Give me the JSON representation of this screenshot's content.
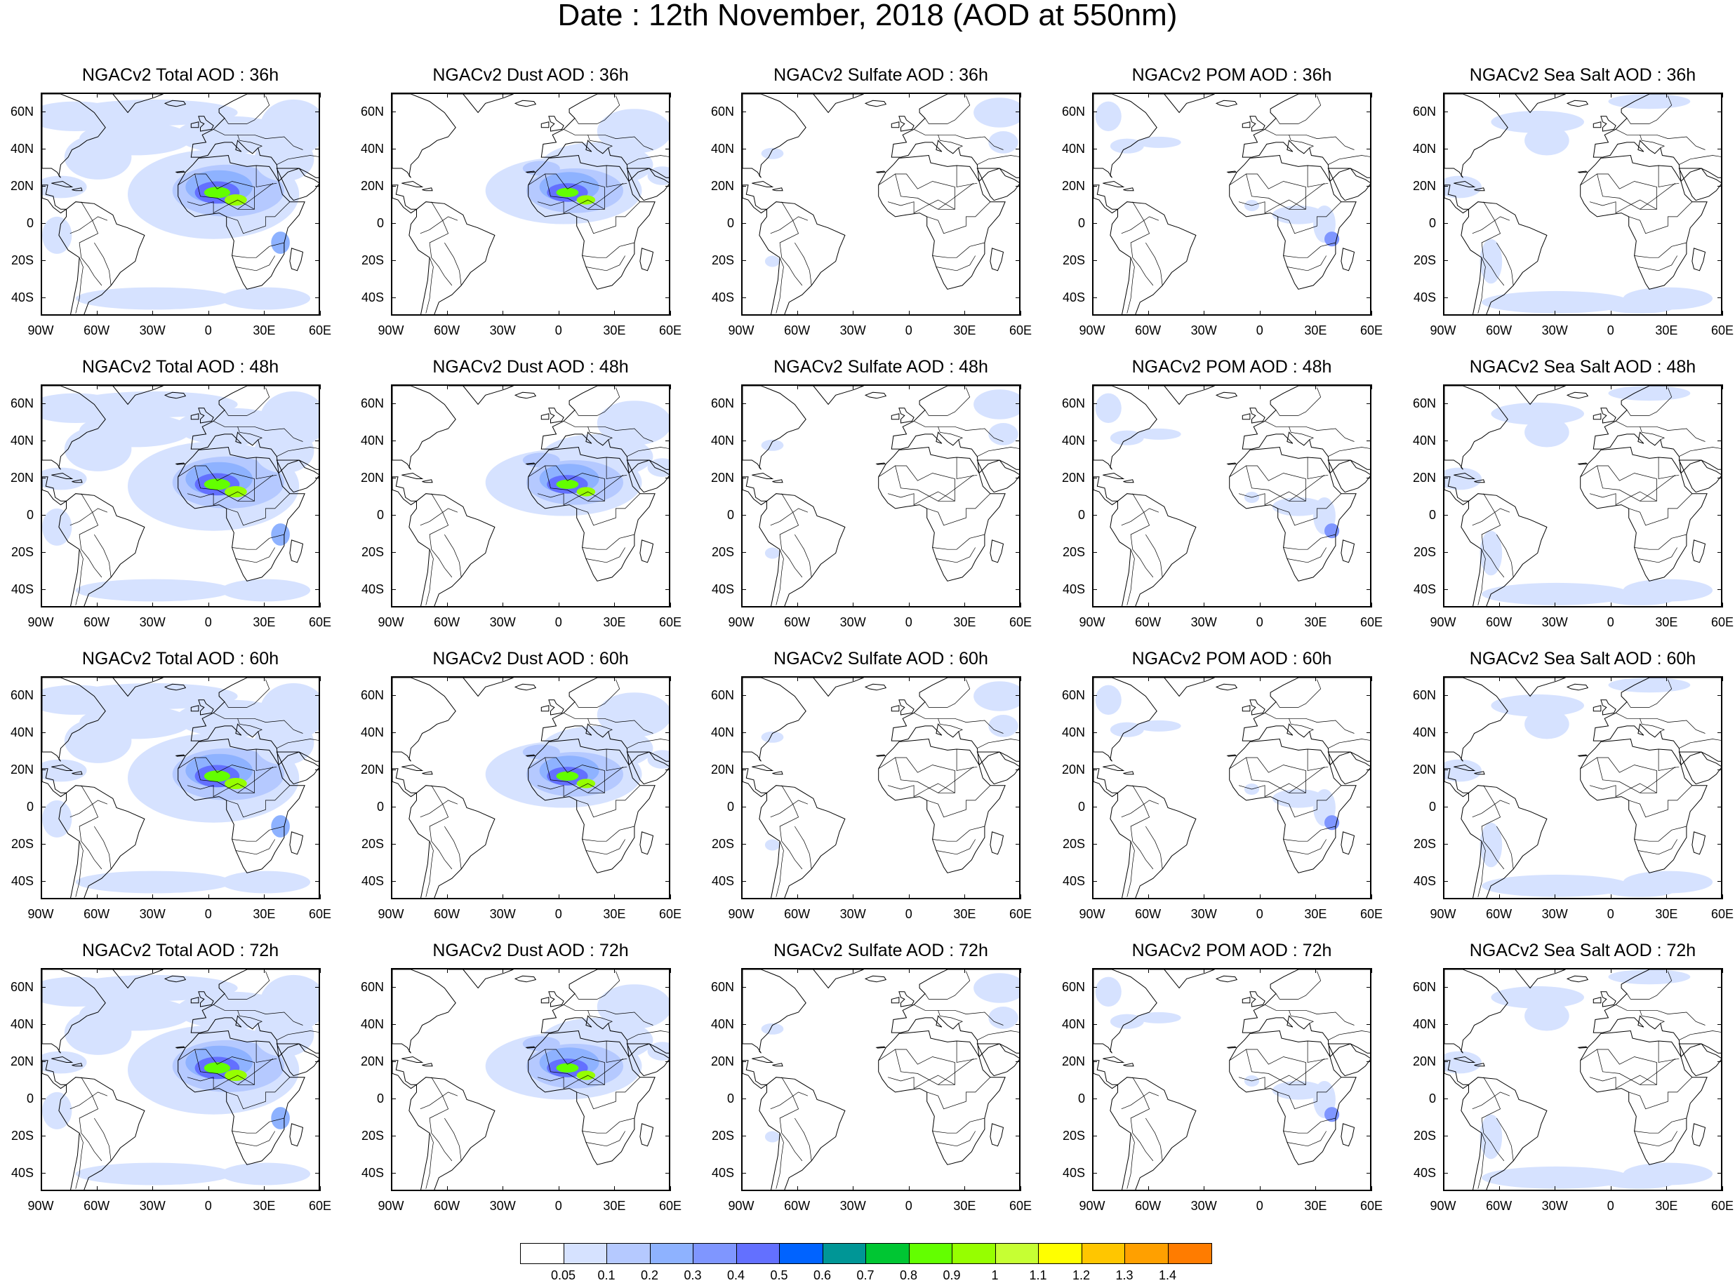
{
  "title": "Date : 12th November, 2018 (AOD at 550nm)",
  "rows": [
    {
      "hour": "36h",
      "panels": [
        {
          "title": "NGACv2 Total AOD : 36h",
          "species": "total"
        },
        {
          "title": "NGACv2 Dust AOD : 36h",
          "species": "dust"
        },
        {
          "title": "NGACv2 Sulfate AOD : 36h",
          "species": "sulfate"
        },
        {
          "title": "NGACv2 POM AOD : 36h",
          "species": "pom"
        },
        {
          "title": "NGACv2 Sea Salt AOD : 36h",
          "species": "seasalt"
        }
      ]
    },
    {
      "hour": "48h",
      "panels": [
        {
          "title": "NGACv2 Total AOD : 48h",
          "species": "total"
        },
        {
          "title": "NGACv2 Dust AOD : 48h",
          "species": "dust"
        },
        {
          "title": "NGACv2 Sulfate AOD : 48h",
          "species": "sulfate"
        },
        {
          "title": "NGACv2 POM AOD : 48h",
          "species": "pom"
        },
        {
          "title": "NGACv2 Sea Salt AOD : 48h",
          "species": "seasalt"
        }
      ]
    },
    {
      "hour": "60h",
      "panels": [
        {
          "title": "NGACv2 Total AOD : 60h",
          "species": "total"
        },
        {
          "title": "NGACv2 Dust AOD : 60h",
          "species": "dust"
        },
        {
          "title": "NGACv2 Sulfate AOD : 60h",
          "species": "sulfate"
        },
        {
          "title": "NGACv2 POM AOD : 60h",
          "species": "pom"
        },
        {
          "title": "NGACv2 Sea Salt AOD : 60h",
          "species": "seasalt"
        }
      ]
    },
    {
      "hour": "72h",
      "panels": [
        {
          "title": "NGACv2 Total AOD : 72h",
          "species": "total"
        },
        {
          "title": "NGACv2 Dust AOD : 72h",
          "species": "dust"
        },
        {
          "title": "NGACv2 Sulfate AOD : 72h",
          "species": "sulfate"
        },
        {
          "title": "NGACv2 POM AOD : 72h",
          "species": "pom"
        },
        {
          "title": "NGACv2 Sea Salt  AOD : 72h",
          "species": "seasalt"
        }
      ]
    }
  ],
  "lon_ticks": [
    "90W",
    "60W",
    "30W",
    "0",
    "30E",
    "60E"
  ],
  "lat_ticks": [
    "60N",
    "40N",
    "20N",
    "0",
    "20S",
    "40S"
  ],
  "extent": {
    "lon_min": -90,
    "lon_max": 60,
    "lat_min": -50,
    "lat_max": 70
  },
  "colorbar": {
    "colors": [
      "#ffffff",
      "#d6e2ff",
      "#b5c9ff",
      "#8eb2ff",
      "#7f96ff",
      "#6370ff",
      "#0063ff",
      "#009696",
      "#00c633",
      "#63ff00",
      "#96ff00",
      "#c6ff33",
      "#ffff00",
      "#ffc600",
      "#ffa000",
      "#ff7c00",
      "#ff1900"
    ],
    "labels": [
      "0.05",
      "0.1",
      "0.2",
      "0.3",
      "0.4",
      "0.5",
      "0.6",
      "0.7",
      "0.8",
      "0.9",
      "1",
      "1.1",
      "1.2",
      "1.3",
      "1.4"
    ]
  }
}
